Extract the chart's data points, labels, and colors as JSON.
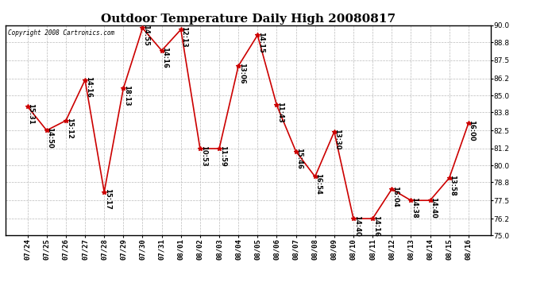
{
  "title": "Outdoor Temperature Daily High 20080817",
  "copyright": "Copyright 2008 Cartronics.com",
  "background_color": "#ffffff",
  "line_color": "#cc0000",
  "marker_color": "#cc0000",
  "x_labels": [
    "07/24",
    "07/25",
    "07/26",
    "07/27",
    "07/28",
    "07/29",
    "07/30",
    "07/31",
    "08/01",
    "08/02",
    "08/03",
    "08/04",
    "08/05",
    "08/06",
    "08/07",
    "08/08",
    "08/09",
    "08/10",
    "08/11",
    "08/12",
    "08/13",
    "08/14",
    "08/15",
    "08/16"
  ],
  "y_values": [
    84.2,
    82.5,
    83.2,
    86.1,
    78.1,
    85.5,
    89.8,
    88.2,
    89.7,
    81.2,
    81.2,
    87.1,
    89.3,
    84.3,
    81.0,
    79.2,
    82.4,
    76.2,
    76.2,
    78.3,
    77.5,
    77.5,
    79.1,
    83.0
  ],
  "annotations": [
    "15:31",
    "14:50",
    "15:12",
    "14:16",
    "15:17",
    "18:13",
    "14:55",
    "14:16",
    "12:13",
    "10:53",
    "11:59",
    "13:06",
    "14:15",
    "11:43",
    "15:46",
    "16:54",
    "13:30",
    "14:40",
    "14:16",
    "16:04",
    "14:38",
    "14:40",
    "13:58",
    "16:00"
  ],
  "ylim": [
    75.0,
    90.0
  ],
  "yticks": [
    75.0,
    76.2,
    77.5,
    78.8,
    80.0,
    81.2,
    82.5,
    83.8,
    85.0,
    86.2,
    87.5,
    88.8,
    90.0
  ],
  "grid_color": "#aaaaaa",
  "title_fontsize": 11,
  "label_fontsize": 6.5,
  "annotation_fontsize": 6
}
